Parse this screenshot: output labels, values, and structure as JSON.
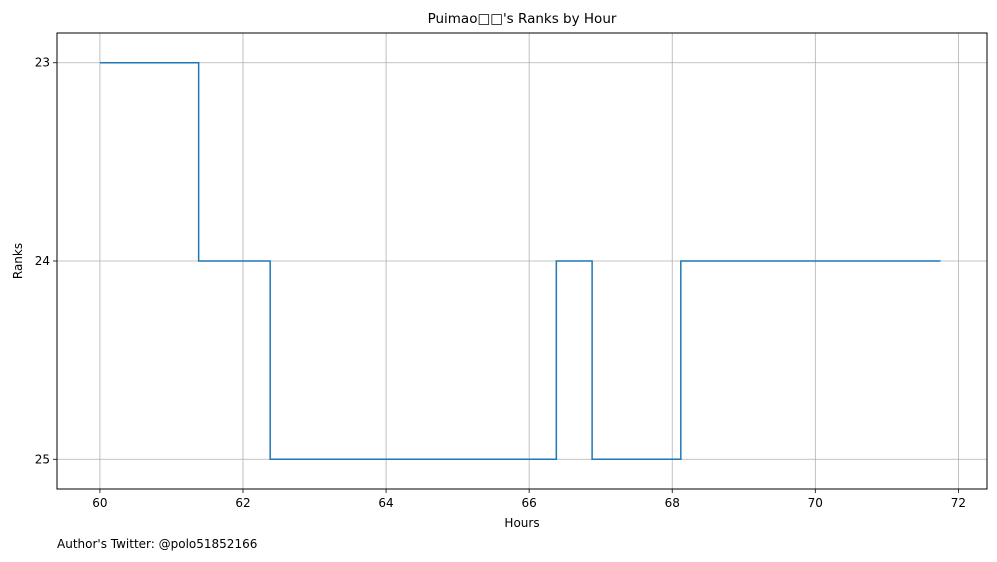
{
  "chart_data": {
    "type": "line",
    "title": "Puimao□□'s Ranks by Hour",
    "xlabel": "Hours",
    "ylabel": "Ranks",
    "xlim": [
      59.4,
      72.4
    ],
    "ylim": [
      25.15,
      22.85
    ],
    "y_inverted": true,
    "xticks": [
      60,
      62,
      64,
      66,
      68,
      70,
      72
    ],
    "yticks": [
      23,
      24,
      25
    ],
    "grid": true,
    "legend": "none",
    "series": [
      {
        "color": "#1f77b4",
        "step": "post",
        "points": [
          {
            "x": 60.0,
            "y": 23
          },
          {
            "x": 61.38,
            "y": 24
          },
          {
            "x": 62.38,
            "y": 25
          },
          {
            "x": 66.38,
            "y": 24
          },
          {
            "x": 66.88,
            "y": 25
          },
          {
            "x": 68.12,
            "y": 24
          },
          {
            "x": 71.75,
            "y": 24
          }
        ]
      }
    ]
  },
  "footer": {
    "text": "Author's Twitter: @polo51852166"
  }
}
